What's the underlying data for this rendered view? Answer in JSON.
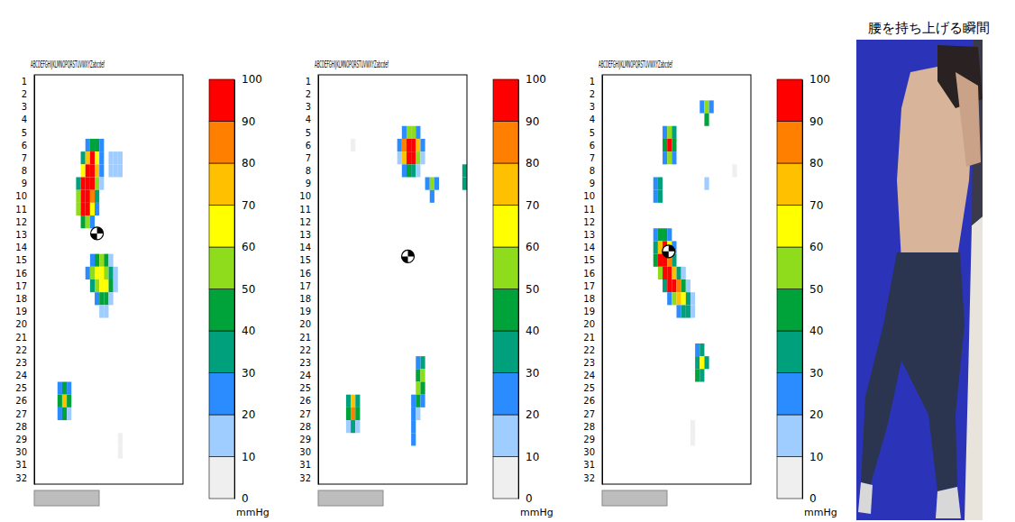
{
  "chart_data": [
    {
      "type": "heatmap",
      "column_header": "ABCDEFGHIJKLMNOPQRSTUVWXYZabcdef",
      "rows": [
        1,
        2,
        3,
        4,
        5,
        6,
        7,
        8,
        9,
        10,
        11,
        12,
        13,
        14,
        15,
        16,
        17,
        18,
        19,
        20,
        21,
        22,
        23,
        24,
        25,
        26,
        27,
        28,
        29,
        30,
        31,
        32
      ],
      "cells": [
        [
          6,
          12,
          20
        ],
        [
          6,
          13,
          40
        ],
        [
          6,
          14,
          40
        ],
        [
          6,
          15,
          20
        ],
        [
          7,
          11,
          30
        ],
        [
          7,
          12,
          70
        ],
        [
          7,
          13,
          90
        ],
        [
          7,
          14,
          60
        ],
        [
          7,
          15,
          20
        ],
        [
          7,
          17,
          15
        ],
        [
          7,
          18,
          15
        ],
        [
          7,
          19,
          10
        ],
        [
          8,
          11,
          60
        ],
        [
          8,
          12,
          95
        ],
        [
          8,
          13,
          100
        ],
        [
          8,
          14,
          70
        ],
        [
          8,
          15,
          20
        ],
        [
          8,
          17,
          15
        ],
        [
          8,
          18,
          15
        ],
        [
          8,
          19,
          10
        ],
        [
          9,
          10,
          30
        ],
        [
          9,
          11,
          90
        ],
        [
          9,
          12,
          100
        ],
        [
          9,
          13,
          90
        ],
        [
          9,
          14,
          50
        ],
        [
          9,
          15,
          15
        ],
        [
          10,
          10,
          50
        ],
        [
          10,
          11,
          100
        ],
        [
          10,
          12,
          100
        ],
        [
          10,
          13,
          80
        ],
        [
          10,
          14,
          30
        ],
        [
          11,
          10,
          50
        ],
        [
          11,
          11,
          95
        ],
        [
          11,
          12,
          100
        ],
        [
          11,
          13,
          60
        ],
        [
          11,
          14,
          20
        ],
        [
          12,
          11,
          40
        ],
        [
          12,
          12,
          50
        ],
        [
          12,
          13,
          20
        ],
        [
          15,
          13,
          20
        ],
        [
          15,
          14,
          40
        ],
        [
          15,
          15,
          50
        ],
        [
          15,
          16,
          40
        ],
        [
          15,
          17,
          15
        ],
        [
          16,
          12,
          20
        ],
        [
          16,
          13,
          50
        ],
        [
          16,
          14,
          60
        ],
        [
          16,
          15,
          65
        ],
        [
          16,
          16,
          55
        ],
        [
          16,
          17,
          30
        ],
        [
          16,
          18,
          10
        ],
        [
          17,
          13,
          30
        ],
        [
          17,
          14,
          55
        ],
        [
          17,
          15,
          60
        ],
        [
          17,
          16,
          60
        ],
        [
          17,
          17,
          40
        ],
        [
          17,
          18,
          15
        ],
        [
          18,
          14,
          20
        ],
        [
          18,
          15,
          40
        ],
        [
          18,
          16,
          40
        ],
        [
          18,
          17,
          15
        ],
        [
          19,
          15,
          15
        ],
        [
          19,
          16,
          10
        ],
        [
          25,
          6,
          20
        ],
        [
          25,
          7,
          40
        ],
        [
          25,
          8,
          20
        ],
        [
          26,
          6,
          40
        ],
        [
          26,
          7,
          75
        ],
        [
          26,
          8,
          40
        ],
        [
          27,
          6,
          20
        ],
        [
          27,
          7,
          40
        ],
        [
          27,
          8,
          15
        ],
        [
          29,
          19,
          5
        ],
        [
          30,
          19,
          5
        ]
      ],
      "center_of_pressure": [
        12.9,
        14.0
      ],
      "colorbar": {
        "lim": [
          0,
          100
        ],
        "ticks": [
          0,
          10,
          20,
          30,
          40,
          50,
          60,
          70,
          80,
          90,
          100
        ],
        "colors": [
          "#efefef",
          "#9fcdff",
          "#2a8cff",
          "#00a07c",
          "#00a23a",
          "#8fdc1c",
          "#ffff00",
          "#ffc000",
          "#ff8000",
          "#ff0000"
        ],
        "label": "mmHg"
      }
    },
    {
      "type": "heatmap",
      "column_header": "ABCDEFGHIJKLMNOPQRSTUVWXYZabcdef",
      "rows": [
        1,
        2,
        3,
        4,
        5,
        6,
        7,
        8,
        9,
        10,
        11,
        12,
        13,
        14,
        15,
        16,
        17,
        18,
        19,
        20,
        21,
        22,
        23,
        24,
        25,
        26,
        27,
        28,
        29,
        30,
        31,
        32
      ],
      "cells": [
        [
          5,
          19,
          20
        ],
        [
          5,
          20,
          50
        ],
        [
          5,
          21,
          50
        ],
        [
          5,
          22,
          20
        ],
        [
          6,
          8,
          5
        ],
        [
          6,
          18,
          20
        ],
        [
          6,
          19,
          80
        ],
        [
          6,
          20,
          100
        ],
        [
          6,
          21,
          100
        ],
        [
          6,
          22,
          70
        ],
        [
          6,
          23,
          20
        ],
        [
          7,
          18,
          15
        ],
        [
          7,
          19,
          70
        ],
        [
          7,
          20,
          100
        ],
        [
          7,
          21,
          95
        ],
        [
          7,
          22,
          50
        ],
        [
          7,
          23,
          15
        ],
        [
          8,
          19,
          20
        ],
        [
          8,
          20,
          40
        ],
        [
          8,
          21,
          30
        ],
        [
          8,
          22,
          10
        ],
        [
          8,
          32,
          30
        ],
        [
          9,
          24,
          20
        ],
        [
          9,
          25,
          50
        ],
        [
          9,
          26,
          20
        ],
        [
          9,
          32,
          30
        ],
        [
          10,
          25,
          20
        ],
        [
          23,
          22,
          20
        ],
        [
          23,
          23,
          30
        ],
        [
          24,
          22,
          40
        ],
        [
          24,
          23,
          50
        ],
        [
          25,
          22,
          50
        ],
        [
          25,
          23,
          40
        ],
        [
          26,
          7,
          30
        ],
        [
          26,
          8,
          70
        ],
        [
          26,
          9,
          30
        ],
        [
          26,
          21,
          20
        ],
        [
          26,
          22,
          40
        ],
        [
          26,
          23,
          20
        ],
        [
          27,
          7,
          40
        ],
        [
          27,
          8,
          80
        ],
        [
          27,
          9,
          40
        ],
        [
          27,
          21,
          20
        ],
        [
          27,
          22,
          15
        ],
        [
          28,
          7,
          10
        ],
        [
          28,
          8,
          30
        ],
        [
          28,
          9,
          10
        ],
        [
          28,
          21,
          20
        ],
        [
          29,
          21,
          20
        ]
      ],
      "center_of_pressure": [
        14.7,
        19.8
      ],
      "colorbar": {
        "lim": [
          0,
          100
        ],
        "ticks": [
          0,
          10,
          20,
          30,
          40,
          50,
          60,
          70,
          80,
          90,
          100
        ],
        "colors": [
          "#efefef",
          "#9fcdff",
          "#2a8cff",
          "#00a07c",
          "#00a23a",
          "#8fdc1c",
          "#ffff00",
          "#ffc000",
          "#ff8000",
          "#ff0000"
        ],
        "label": "mmHg"
      }
    },
    {
      "type": "heatmap",
      "column_header": "ABCDEFGHIJKLMNOPQRSTUVWXYZabcdef",
      "rows": [
        1,
        2,
        3,
        4,
        5,
        6,
        7,
        8,
        9,
        10,
        11,
        12,
        13,
        14,
        15,
        16,
        17,
        18,
        19,
        20,
        21,
        22,
        23,
        24,
        25,
        26,
        27,
        28,
        29,
        30,
        31,
        32
      ],
      "cells": [
        [
          3,
          22,
          20
        ],
        [
          3,
          23,
          50
        ],
        [
          3,
          24,
          20
        ],
        [
          4,
          23,
          40
        ],
        [
          5,
          14,
          20
        ],
        [
          5,
          15,
          50
        ],
        [
          5,
          16,
          30
        ],
        [
          6,
          14,
          40
        ],
        [
          6,
          15,
          90
        ],
        [
          6,
          16,
          40
        ],
        [
          7,
          14,
          20
        ],
        [
          7,
          15,
          50
        ],
        [
          7,
          16,
          20
        ],
        [
          8,
          29,
          5
        ],
        [
          9,
          12,
          20
        ],
        [
          9,
          13,
          30
        ],
        [
          9,
          23,
          15
        ],
        [
          10,
          12,
          20
        ],
        [
          10,
          13,
          30
        ],
        [
          13,
          12,
          20
        ],
        [
          13,
          13,
          40
        ],
        [
          13,
          14,
          40
        ],
        [
          13,
          15,
          20
        ],
        [
          14,
          12,
          30
        ],
        [
          14,
          13,
          70
        ],
        [
          14,
          14,
          90
        ],
        [
          14,
          15,
          60
        ],
        [
          14,
          16,
          20
        ],
        [
          15,
          12,
          40
        ],
        [
          15,
          13,
          90
        ],
        [
          15,
          14,
          100
        ],
        [
          15,
          15,
          80
        ],
        [
          15,
          16,
          30
        ],
        [
          16,
          13,
          50
        ],
        [
          16,
          14,
          100
        ],
        [
          16,
          15,
          100
        ],
        [
          16,
          16,
          70
        ],
        [
          16,
          17,
          30
        ],
        [
          16,
          18,
          10
        ],
        [
          17,
          14,
          30
        ],
        [
          17,
          15,
          90
        ],
        [
          17,
          16,
          100
        ],
        [
          17,
          17,
          80
        ],
        [
          17,
          18,
          40
        ],
        [
          17,
          19,
          15
        ],
        [
          18,
          15,
          20
        ],
        [
          18,
          16,
          50
        ],
        [
          18,
          17,
          70
        ],
        [
          18,
          18,
          60
        ],
        [
          18,
          19,
          30
        ],
        [
          18,
          20,
          10
        ],
        [
          19,
          17,
          20
        ],
        [
          19,
          18,
          30
        ],
        [
          19,
          19,
          30
        ],
        [
          19,
          20,
          15
        ],
        [
          22,
          21,
          20
        ],
        [
          22,
          22,
          30
        ],
        [
          23,
          21,
          30
        ],
        [
          23,
          22,
          60
        ],
        [
          23,
          23,
          30
        ],
        [
          24,
          21,
          40
        ],
        [
          24,
          22,
          30
        ],
        [
          28,
          20,
          5
        ],
        [
          29,
          20,
          5
        ]
      ],
      "center_of_pressure": [
        14.3,
        14.8
      ],
      "colorbar": {
        "lim": [
          0,
          100
        ],
        "ticks": [
          0,
          10,
          20,
          30,
          40,
          50,
          60,
          70,
          80,
          90,
          100
        ],
        "colors": [
          "#efefef",
          "#9fcdff",
          "#2a8cff",
          "#00a07c",
          "#00a23a",
          "#8fdc1c",
          "#ffff00",
          "#ffc000",
          "#ff8000",
          "#ff0000"
        ],
        "label": "mmHg"
      }
    }
  ],
  "photo": {
    "title": "腰を持ち上げる瞬間"
  }
}
